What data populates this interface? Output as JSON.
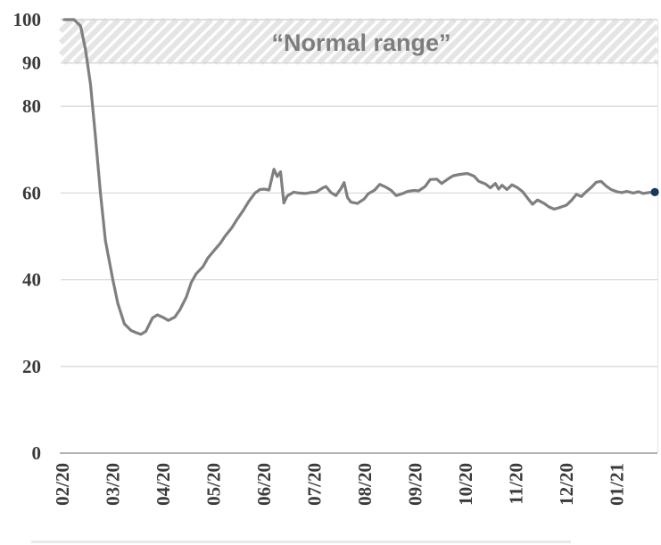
{
  "chart_data": {
    "type": "line",
    "title": "",
    "xlabel": "",
    "ylabel": "",
    "y_axis": {
      "ticks": [
        100,
        90,
        80,
        60,
        40,
        20,
        0
      ],
      "range": [
        0,
        100
      ],
      "grid": true
    },
    "x_axis": {
      "tick_labels": [
        "02/20",
        "03/20",
        "04/20",
        "05/20",
        "06/20",
        "07/20",
        "08/20",
        "09/20",
        "10/20",
        "11/20",
        "12/20",
        "01/21"
      ],
      "label_rotation": -90
    },
    "band": {
      "from": 90,
      "to": 100,
      "label": "“Normal range”",
      "style": "diagonal-hatch"
    },
    "legend": "none",
    "series": [
      {
        "line_color": "#7f7f7f",
        "end_marker_color": "#17375d",
        "points": [
          [
            "2020-02-02",
            100
          ],
          [
            "2020-02-08",
            100
          ],
          [
            "2020-02-12",
            98.5
          ],
          [
            "2020-02-15",
            93
          ],
          [
            "2020-02-18",
            85
          ],
          [
            "2020-02-21",
            73
          ],
          [
            "2020-02-24",
            60
          ],
          [
            "2020-02-27",
            49
          ],
          [
            "2020-03-01",
            40
          ],
          [
            "2020-03-04",
            34.5
          ],
          [
            "2020-03-08",
            29.8
          ],
          [
            "2020-03-12",
            28.3
          ],
          [
            "2020-03-15",
            27.8
          ],
          [
            "2020-03-18",
            27.4
          ],
          [
            "2020-03-21",
            28.1
          ],
          [
            "2020-03-25",
            31.2
          ],
          [
            "2020-03-28",
            31.9
          ],
          [
            "2020-04-01",
            31.3
          ],
          [
            "2020-04-04",
            30.6
          ],
          [
            "2020-04-08",
            31.4
          ],
          [
            "2020-04-11",
            33
          ],
          [
            "2020-04-15",
            36
          ],
          [
            "2020-04-18",
            39.4
          ],
          [
            "2020-04-21",
            41.4
          ],
          [
            "2020-04-25",
            43
          ],
          [
            "2020-04-28",
            45
          ],
          [
            "2020-05-01",
            46.6
          ],
          [
            "2020-05-05",
            48.4
          ],
          [
            "2020-05-08",
            50.1
          ],
          [
            "2020-05-12",
            52
          ],
          [
            "2020-05-15",
            53.8
          ],
          [
            "2020-05-19",
            56
          ],
          [
            "2020-05-22",
            57.9
          ],
          [
            "2020-05-26",
            60
          ],
          [
            "2020-05-29",
            60.8
          ],
          [
            "2020-06-01",
            60.9
          ],
          [
            "2020-06-04",
            60.7
          ],
          [
            "2020-06-07",
            65.5
          ],
          [
            "2020-06-09",
            63.8
          ],
          [
            "2020-06-11",
            64.9
          ],
          [
            "2020-06-13",
            57.7
          ],
          [
            "2020-06-15",
            59.3
          ],
          [
            "2020-06-19",
            60.2
          ],
          [
            "2020-06-22",
            60.0
          ],
          [
            "2020-06-26",
            59.9
          ],
          [
            "2020-06-29",
            60.1
          ],
          [
            "2020-07-02",
            60.2
          ],
          [
            "2020-07-06",
            61.2
          ],
          [
            "2020-07-08",
            61.5
          ],
          [
            "2020-07-11",
            60.1
          ],
          [
            "2020-07-14",
            59.4
          ],
          [
            "2020-07-17",
            61
          ],
          [
            "2020-07-19",
            62.4
          ],
          [
            "2020-07-21",
            59
          ],
          [
            "2020-07-23",
            57.9
          ],
          [
            "2020-07-27",
            57.6
          ],
          [
            "2020-07-31",
            58.6
          ],
          [
            "2020-08-03",
            59.8
          ],
          [
            "2020-08-07",
            60.7
          ],
          [
            "2020-08-10",
            62
          ],
          [
            "2020-08-14",
            61.3
          ],
          [
            "2020-08-17",
            60.6
          ],
          [
            "2020-08-20",
            59.4
          ],
          [
            "2020-08-24",
            59.9
          ],
          [
            "2020-08-27",
            60.4
          ],
          [
            "2020-08-31",
            60.6
          ],
          [
            "2020-09-03",
            60.5
          ],
          [
            "2020-09-07",
            61.5
          ],
          [
            "2020-09-10",
            63.1
          ],
          [
            "2020-09-14",
            63.2
          ],
          [
            "2020-09-17",
            62.2
          ],
          [
            "2020-09-21",
            63.3
          ],
          [
            "2020-09-24",
            64
          ],
          [
            "2020-09-28",
            64.3
          ],
          [
            "2020-10-02",
            64.5
          ],
          [
            "2020-10-06",
            63.9
          ],
          [
            "2020-10-09",
            62.7
          ],
          [
            "2020-10-13",
            62.1
          ],
          [
            "2020-10-16",
            61.2
          ],
          [
            "2020-10-19",
            62.2
          ],
          [
            "2020-10-21",
            60.9
          ],
          [
            "2020-10-23",
            61.8
          ],
          [
            "2020-10-26",
            60.8
          ],
          [
            "2020-10-29",
            61.9
          ],
          [
            "2020-11-02",
            61.2
          ],
          [
            "2020-11-05",
            60.3
          ],
          [
            "2020-11-08",
            58.8
          ],
          [
            "2020-11-11",
            57.4
          ],
          [
            "2020-11-14",
            58.4
          ],
          [
            "2020-11-18",
            57.6
          ],
          [
            "2020-11-21",
            56.8
          ],
          [
            "2020-11-24",
            56.3
          ],
          [
            "2020-11-27",
            56.6
          ],
          [
            "2020-12-01",
            57.2
          ],
          [
            "2020-12-04",
            58.3
          ],
          [
            "2020-12-07",
            59.7
          ],
          [
            "2020-12-10",
            59.2
          ],
          [
            "2020-12-13",
            60.3
          ],
          [
            "2020-12-16",
            61.3
          ],
          [
            "2020-12-19",
            62.5
          ],
          [
            "2020-12-22",
            62.7
          ],
          [
            "2020-12-25",
            61.6
          ],
          [
            "2020-12-28",
            60.8
          ],
          [
            "2021-01-01",
            60.3
          ],
          [
            "2021-01-04",
            60.1
          ],
          [
            "2021-01-07",
            60.4
          ],
          [
            "2021-01-11",
            60.0
          ],
          [
            "2021-01-14",
            60.3
          ],
          [
            "2021-01-17",
            59.9
          ],
          [
            "2021-01-20",
            60.1
          ],
          [
            "2021-01-24",
            60.2
          ]
        ]
      }
    ]
  },
  "colors": {
    "series_line": "#7f7f7f",
    "end_marker": "#17375d",
    "gridline": "#d9d9d9",
    "band_border": "#d4d4d4",
    "band_stripe": "#e5e5e5",
    "axis_line": "#b3b3b3",
    "tick_text": "#3a3a3a",
    "band_label_text": "#7d7d7d",
    "right_border": "#e3e3e3",
    "bottom_crop_fragment": "#e9e9e9"
  }
}
